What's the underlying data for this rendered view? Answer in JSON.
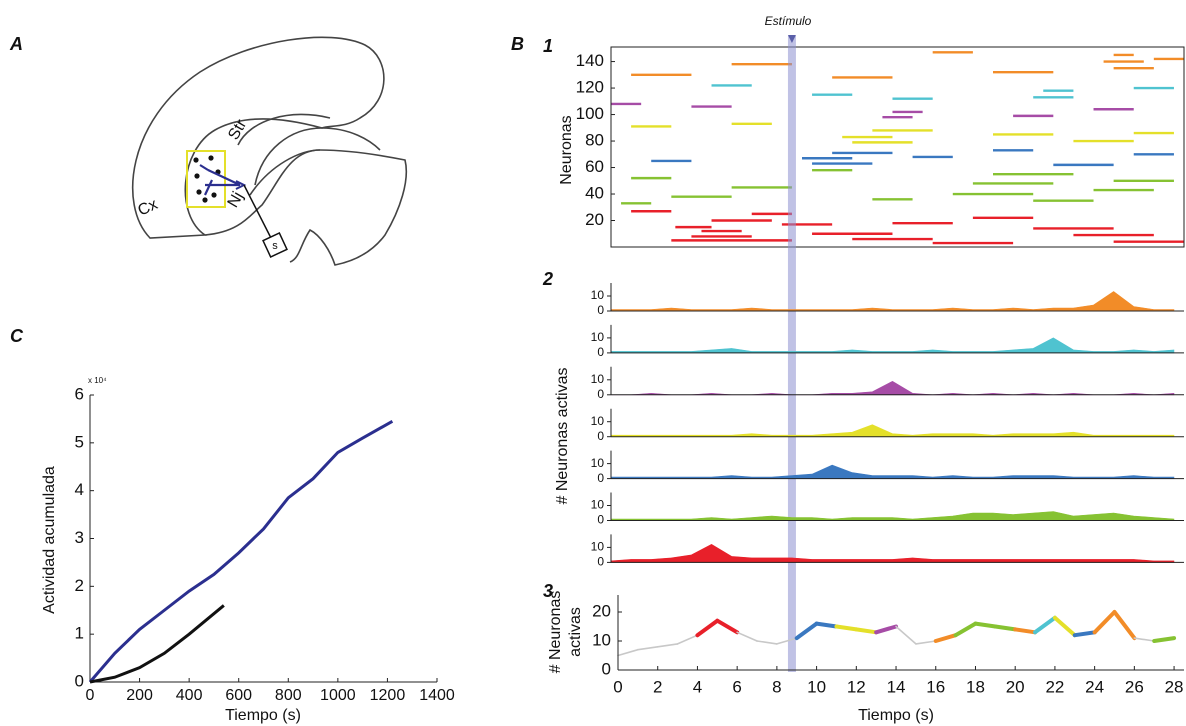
{
  "panels": {
    "a": "A",
    "b": "B",
    "c": "C",
    "b1": "1",
    "b2": "2",
    "b3": "3"
  },
  "diagram": {
    "labels": {
      "cx": "Cx",
      "str": "Str",
      "nj": "Nj",
      "s": "s"
    }
  },
  "chart_data": [
    {
      "type": "line",
      "xlabel": "Tiempo (s)",
      "ylabel": "Actividad acumulada",
      "multiplier": "x 10⁴",
      "xlim": [
        0,
        1400
      ],
      "ylim": [
        0,
        6
      ],
      "xticks": [
        0,
        200,
        400,
        600,
        800,
        1000,
        1200,
        1400
      ],
      "yticks": [
        0,
        1,
        2,
        3,
        4,
        5,
        6
      ],
      "series": [
        {
          "color": "#2b2f8f",
          "x": [
            0,
            100,
            200,
            300,
            400,
            500,
            600,
            700,
            800,
            900,
            1000,
            1100,
            1220
          ],
          "values": [
            0,
            0.6,
            1.1,
            1.5,
            1.9,
            2.25,
            2.7,
            3.2,
            3.85,
            4.25,
            4.8,
            5.1,
            5.45
          ]
        },
        {
          "color": "#111111",
          "x": [
            0,
            100,
            200,
            300,
            400,
            540
          ],
          "values": [
            0,
            0.1,
            0.3,
            0.6,
            1.0,
            1.6
          ]
        }
      ]
    },
    {
      "type": "raster",
      "ylabel": "Neuronas",
      "xlim": [
        0,
        28.5
      ],
      "ylim": [
        0,
        151
      ],
      "yticks": [
        20,
        40,
        60,
        80,
        100,
        120,
        140
      ],
      "annotation": {
        "text": "Estímulo",
        "x": 9
      },
      "series": [
        {
          "color": "#e8202a",
          "segments": [
            [
              5,
              3,
              9
            ],
            [
              8,
              4,
              7
            ],
            [
              12,
              4.5,
              6.5
            ],
            [
              15,
              3.2,
              5
            ],
            [
              20,
              5,
              8
            ],
            [
              25,
              7,
              9
            ],
            [
              10,
              10,
              14
            ],
            [
              6,
              12,
              16
            ],
            [
              18,
              14,
              17
            ],
            [
              3,
              16,
              20
            ],
            [
              22,
              18,
              21
            ],
            [
              14,
              21,
              25
            ],
            [
              9,
              23,
              27
            ],
            [
              27,
              1,
              3
            ],
            [
              4,
              25,
              28.5
            ],
            [
              17,
              8.5,
              11
            ]
          ]
        },
        {
          "color": "#86c232",
          "segments": [
            [
              33,
              0.5,
              2
            ],
            [
              38,
              3,
              6
            ],
            [
              45,
              6,
              9
            ],
            [
              52,
              1,
              3
            ],
            [
              40,
              17,
              21
            ],
            [
              48,
              18,
              22
            ],
            [
              55,
              19,
              23
            ],
            [
              35,
              21,
              24
            ],
            [
              43,
              24,
              27
            ],
            [
              58,
              10,
              12
            ],
            [
              50,
              25,
              28
            ],
            [
              36,
              13,
              15
            ]
          ]
        },
        {
          "color": "#3a78c0",
          "segments": [
            [
              63,
              10,
              13
            ],
            [
              67,
              9.5,
              12
            ],
            [
              71,
              11,
              14
            ],
            [
              65,
              2,
              4
            ],
            [
              68,
              15,
              17
            ],
            [
              73,
              19,
              21
            ],
            [
              62,
              22,
              25
            ],
            [
              70,
              26,
              28
            ]
          ]
        },
        {
          "color": "#e4e02a",
          "segments": [
            [
              79,
              12,
              15
            ],
            [
              83,
              11.5,
              14
            ],
            [
              88,
              13,
              16
            ],
            [
              91,
              1,
              3
            ],
            [
              85,
              19,
              22
            ],
            [
              80,
              23,
              26
            ],
            [
              93,
              6,
              8
            ],
            [
              86,
              26,
              28
            ]
          ]
        },
        {
          "color": "#a64ca6",
          "segments": [
            [
              98,
              13.5,
              15
            ],
            [
              102,
              14,
              15.5
            ],
            [
              106,
              4,
              6
            ],
            [
              99,
              20,
              22
            ],
            [
              104,
              24,
              26
            ],
            [
              108,
              0,
              1.5
            ]
          ]
        },
        {
          "color": "#4fc3d0",
          "segments": [
            [
              113,
              21,
              23
            ],
            [
              118,
              21.5,
              23
            ],
            [
              122,
              5,
              7
            ],
            [
              115,
              10,
              12
            ],
            [
              120,
              26,
              28
            ],
            [
              112,
              14,
              16
            ]
          ]
        },
        {
          "color": "#f28c28",
          "segments": [
            [
              140,
              24.5,
              26.5
            ],
            [
              135,
              25,
              27
            ],
            [
              145,
              25,
              26
            ],
            [
              130,
              1,
              4
            ],
            [
              138,
              6,
              9
            ],
            [
              128,
              11,
              14
            ],
            [
              147,
              16,
              18
            ],
            [
              132,
              19,
              22
            ],
            [
              142,
              27,
              28.5
            ]
          ]
        }
      ]
    },
    {
      "type": "area-panels",
      "ylabel": "# Neuronas activas",
      "xlim": [
        0,
        28.5
      ],
      "ylim": [
        0,
        20
      ],
      "yticks": [
        0,
        10
      ],
      "x": [
        0,
        1,
        2,
        3,
        4,
        5,
        6,
        7,
        8,
        9,
        10,
        11,
        12,
        13,
        14,
        15,
        16,
        17,
        18,
        19,
        20,
        21,
        22,
        23,
        24,
        25,
        26,
        27,
        28
      ],
      "series": [
        {
          "color": "#f28c28",
          "values": [
            1,
            1,
            1,
            2,
            1,
            1,
            1,
            2,
            1,
            1,
            1,
            1,
            1,
            2,
            1,
            1,
            1,
            2,
            1,
            1,
            2,
            1,
            2,
            2,
            4,
            13,
            3,
            1,
            1
          ]
        },
        {
          "color": "#4fc3d0",
          "values": [
            1,
            1,
            1,
            1,
            1,
            2,
            3,
            1,
            1,
            1,
            1,
            1,
            2,
            1,
            1,
            1,
            2,
            1,
            1,
            1,
            2,
            3,
            10,
            2,
            1,
            1,
            2,
            1,
            2
          ]
        },
        {
          "color": "#a64ca6",
          "values": [
            0,
            0,
            1,
            0,
            0,
            1,
            0,
            0,
            1,
            0,
            0,
            1,
            1,
            2,
            9,
            1,
            0,
            1,
            0,
            1,
            0,
            1,
            0,
            1,
            0,
            0,
            1,
            0,
            1
          ]
        },
        {
          "color": "#e4e02a",
          "values": [
            1,
            1,
            1,
            1,
            1,
            1,
            1,
            2,
            1,
            1,
            1,
            2,
            3,
            8,
            2,
            1,
            2,
            2,
            2,
            1,
            2,
            2,
            2,
            3,
            1,
            1,
            1,
            1,
            1
          ]
        },
        {
          "color": "#3a78c0",
          "values": [
            1,
            1,
            1,
            1,
            1,
            1,
            2,
            1,
            1,
            2,
            3,
            9,
            4,
            2,
            2,
            2,
            1,
            2,
            1,
            1,
            2,
            2,
            2,
            1,
            1,
            1,
            2,
            1,
            1
          ]
        },
        {
          "color": "#86c232",
          "values": [
            1,
            1,
            1,
            1,
            1,
            2,
            1,
            2,
            3,
            2,
            2,
            1,
            2,
            2,
            2,
            1,
            2,
            3,
            5,
            5,
            4,
            5,
            6,
            3,
            4,
            5,
            3,
            2,
            1
          ]
        },
        {
          "color": "#e8202a",
          "values": [
            1,
            2,
            2,
            3,
            5,
            12,
            4,
            3,
            3,
            3,
            2,
            2,
            2,
            2,
            2,
            3,
            2,
            2,
            2,
            2,
            2,
            2,
            2,
            2,
            2,
            2,
            2,
            1,
            1
          ]
        }
      ]
    },
    {
      "type": "colored-line",
      "xlabel": "Tiempo (s)",
      "ylabel": [
        "# Neuronas",
        "activas"
      ],
      "xlim": [
        0,
        28.5
      ],
      "ylim": [
        0,
        25
      ],
      "xticks": [
        0,
        2,
        4,
        6,
        8,
        10,
        12,
        14,
        16,
        18,
        20,
        22,
        24,
        26,
        28
      ],
      "yticks": [
        0,
        10,
        20
      ],
      "x": [
        0,
        1,
        2,
        3,
        4,
        5,
        6,
        7,
        8,
        9,
        10,
        11,
        12,
        13,
        14,
        15,
        16,
        17,
        18,
        19,
        20,
        21,
        22,
        23,
        24,
        25,
        26,
        27,
        28
      ],
      "values": [
        5,
        7,
        8,
        9,
        12,
        17,
        13,
        10,
        9,
        11,
        16,
        15,
        14,
        13,
        15,
        9,
        10,
        12,
        16,
        15,
        14,
        13,
        18,
        12,
        13,
        20,
        11,
        10,
        11
      ],
      "colors": [
        "#c8c8c8",
        "#c8c8c8",
        "#c8c8c8",
        "#c8c8c8",
        "#c8c8c8",
        "#e8202a",
        "#e8202a",
        "#c8c8c8",
        "#c8c8c8",
        "#c8c8c8",
        "#3a78c0",
        "#3a78c0",
        "#e4e02a",
        "#e4e02a",
        "#a64ca6",
        "#c8c8c8",
        "#c8c8c8",
        "#f28c28",
        "#86c232",
        "#86c232",
        "#86c232",
        "#f28c28",
        "#4fc3d0",
        "#e4e02a",
        "#3a78c0",
        "#f28c28",
        "#f28c28",
        "#c8c8c8",
        "#86c232"
      ]
    }
  ]
}
